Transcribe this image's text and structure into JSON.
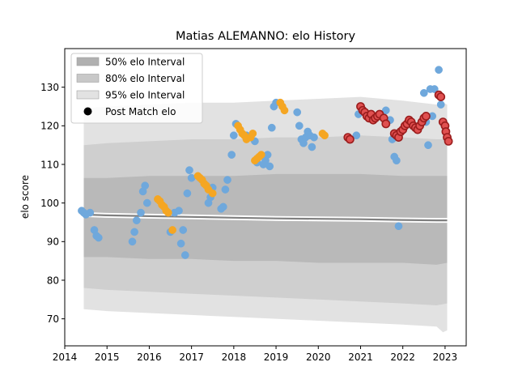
{
  "chart_data": {
    "type": "scatter",
    "title": "Matias ALEMANNO: elo History",
    "xlabel": "",
    "ylabel": "elo score",
    "xlim": [
      2014.0,
      2023.5
    ],
    "ylim": [
      63.0,
      140.0
    ],
    "x_ticks": [
      2014,
      2015,
      2016,
      2017,
      2018,
      2019,
      2020,
      2021,
      2022,
      2023
    ],
    "y_ticks": [
      70,
      80,
      90,
      100,
      110,
      120,
      130
    ],
    "grid": false,
    "legend_position": "upper-left",
    "legend": [
      {
        "label": "50% elo Interval",
        "kind": "patch",
        "color": "#b0b0b0"
      },
      {
        "label": "80% elo Interval",
        "kind": "patch",
        "color": "#c8c8c8"
      },
      {
        "label": "95% elo Interval",
        "kind": "patch",
        "color": "#e2e2e2"
      },
      {
        "label": "Post Match elo",
        "kind": "marker",
        "color": "#000000"
      }
    ],
    "bands": [
      {
        "interval": "95%",
        "color": "#e2e2e2",
        "x": [
          2014.45,
          2015.0,
          2016.0,
          2017.0,
          2018.0,
          2019.0,
          2020.0,
          2021.0,
          2022.0,
          2022.8,
          2022.95,
          2023.05
        ],
        "upper": [
          124.5,
          125.0,
          125.5,
          126.0,
          126.0,
          126.5,
          127.0,
          127.5,
          126.5,
          125.5,
          126.0,
          125.5
        ],
        "lower": [
          72.5,
          72.0,
          71.5,
          71.0,
          70.5,
          70.0,
          69.5,
          69.0,
          68.5,
          68.0,
          66.5,
          67.0
        ]
      },
      {
        "interval": "80%",
        "color": "#cfcfcf",
        "x": [
          2014.45,
          2015.0,
          2016.0,
          2017.0,
          2018.0,
          2019.0,
          2020.0,
          2021.0,
          2022.0,
          2022.8,
          2023.05
        ],
        "upper": [
          115.0,
          115.5,
          116.0,
          116.5,
          116.5,
          117.0,
          117.0,
          117.5,
          117.0,
          116.5,
          116.5
        ],
        "lower": [
          78.0,
          77.5,
          77.0,
          76.5,
          76.0,
          75.5,
          75.0,
          74.5,
          74.0,
          73.5,
          74.0
        ]
      },
      {
        "interval": "50%",
        "color": "#b9b9b9",
        "x": [
          2014.45,
          2015.0,
          2016.0,
          2017.0,
          2018.0,
          2019.0,
          2020.0,
          2021.0,
          2022.0,
          2022.8,
          2023.05
        ],
        "upper": [
          106.5,
          106.5,
          107.0,
          107.0,
          107.0,
          107.5,
          107.5,
          107.5,
          107.0,
          107.0,
          107.0
        ],
        "lower": [
          86.0,
          86.0,
          85.5,
          85.5,
          85.0,
          85.0,
          84.5,
          84.5,
          84.5,
          84.0,
          84.5
        ]
      }
    ],
    "median_line": {
      "color": "#808080",
      "x": [
        2014.45,
        2015.0,
        2016.0,
        2017.0,
        2018.0,
        2019.0,
        2020.0,
        2021.0,
        2022.0,
        2022.8,
        2023.05
      ],
      "y": [
        97.0,
        96.8,
        96.6,
        96.4,
        96.2,
        96.0,
        95.9,
        95.8,
        95.6,
        95.5,
        95.5
      ]
    },
    "series": [
      {
        "color": "#6fa8dc",
        "points": [
          [
            2014.4,
            98.0
          ],
          [
            2014.45,
            97.5
          ],
          [
            2014.5,
            97.0
          ],
          [
            2014.6,
            97.5
          ],
          [
            2014.7,
            93.0
          ],
          [
            2014.75,
            91.5
          ],
          [
            2014.8,
            91.0
          ],
          [
            2015.6,
            90.0
          ],
          [
            2015.65,
            92.5
          ],
          [
            2015.7,
            95.5
          ],
          [
            2015.8,
            97.5
          ],
          [
            2015.85,
            103.0
          ],
          [
            2015.9,
            104.5
          ],
          [
            2015.95,
            100.0
          ],
          [
            2016.5,
            92.5
          ],
          [
            2016.6,
            97.5
          ],
          [
            2016.7,
            98.0
          ],
          [
            2016.75,
            89.5
          ],
          [
            2016.8,
            93.0
          ],
          [
            2016.85,
            86.5
          ],
          [
            2016.9,
            102.5
          ],
          [
            2016.95,
            108.5
          ],
          [
            2017.0,
            106.5
          ],
          [
            2017.4,
            100.0
          ],
          [
            2017.45,
            101.5
          ],
          [
            2017.5,
            104.0
          ],
          [
            2017.7,
            98.5
          ],
          [
            2017.75,
            99.0
          ],
          [
            2017.8,
            103.5
          ],
          [
            2017.85,
            106.0
          ],
          [
            2017.95,
            112.5
          ],
          [
            2018.0,
            117.5
          ],
          [
            2018.05,
            120.5
          ],
          [
            2018.3,
            117.5
          ],
          [
            2018.4,
            117.0
          ],
          [
            2018.5,
            116.0
          ],
          [
            2018.55,
            110.5
          ],
          [
            2018.7,
            110.0
          ],
          [
            2018.75,
            111.0
          ],
          [
            2018.8,
            112.5
          ],
          [
            2018.85,
            109.5
          ],
          [
            2018.9,
            119.5
          ],
          [
            2018.95,
            125.0
          ],
          [
            2019.0,
            126.0
          ],
          [
            2019.5,
            123.5
          ],
          [
            2019.55,
            120.0
          ],
          [
            2019.6,
            116.5
          ],
          [
            2019.65,
            115.5
          ],
          [
            2019.7,
            117.0
          ],
          [
            2019.75,
            118.5
          ],
          [
            2019.8,
            117.5
          ],
          [
            2019.85,
            114.5
          ],
          [
            2019.9,
            117.0
          ],
          [
            2020.9,
            117.5
          ],
          [
            2020.95,
            123.0
          ],
          [
            2021.5,
            123.0
          ],
          [
            2021.6,
            124.0
          ],
          [
            2021.7,
            121.5
          ],
          [
            2021.75,
            116.5
          ],
          [
            2021.8,
            112.0
          ],
          [
            2021.85,
            111.0
          ],
          [
            2021.9,
            94.0
          ],
          [
            2022.5,
            128.5
          ],
          [
            2022.55,
            121.0
          ],
          [
            2022.6,
            115.0
          ],
          [
            2022.65,
            129.5
          ],
          [
            2022.7,
            122.5
          ],
          [
            2022.75,
            129.5
          ],
          [
            2022.85,
            134.5
          ],
          [
            2022.9,
            125.5
          ]
        ]
      },
      {
        "color": "#f5a623",
        "points": [
          [
            2016.2,
            101.0
          ],
          [
            2016.25,
            100.5
          ],
          [
            2016.3,
            99.5
          ],
          [
            2016.35,
            99.0
          ],
          [
            2016.4,
            98.0
          ],
          [
            2016.45,
            97.5
          ],
          [
            2016.55,
            93.0
          ],
          [
            2017.15,
            107.0
          ],
          [
            2017.2,
            106.5
          ],
          [
            2017.25,
            106.0
          ],
          [
            2017.3,
            105.0
          ],
          [
            2017.35,
            104.5
          ],
          [
            2017.4,
            103.5
          ],
          [
            2017.5,
            102.5
          ],
          [
            2018.1,
            120.0
          ],
          [
            2018.15,
            119.0
          ],
          [
            2018.2,
            118.0
          ],
          [
            2018.25,
            117.5
          ],
          [
            2018.3,
            116.5
          ],
          [
            2018.4,
            117.0
          ],
          [
            2018.45,
            118.0
          ],
          [
            2018.5,
            111.0
          ],
          [
            2018.55,
            111.5
          ],
          [
            2018.6,
            112.0
          ],
          [
            2018.65,
            112.5
          ],
          [
            2019.1,
            126.0
          ],
          [
            2019.15,
            125.0
          ],
          [
            2019.2,
            124.0
          ],
          [
            2020.1,
            118.0
          ],
          [
            2020.15,
            117.5
          ]
        ]
      },
      {
        "color": "#e05050",
        "edge": "#9b1d1d",
        "points": [
          [
            2020.7,
            117.0
          ],
          [
            2020.75,
            116.5
          ],
          [
            2021.0,
            125.0
          ],
          [
            2021.05,
            124.0
          ],
          [
            2021.1,
            123.5
          ],
          [
            2021.15,
            122.5
          ],
          [
            2021.2,
            122.0
          ],
          [
            2021.25,
            123.0
          ],
          [
            2021.3,
            121.5
          ],
          [
            2021.35,
            122.0
          ],
          [
            2021.4,
            122.5
          ],
          [
            2021.45,
            123.0
          ],
          [
            2021.55,
            122.0
          ],
          [
            2021.6,
            120.5
          ],
          [
            2021.8,
            118.0
          ],
          [
            2021.85,
            117.5
          ],
          [
            2021.9,
            117.0
          ],
          [
            2021.95,
            118.5
          ],
          [
            2022.0,
            119.0
          ],
          [
            2022.05,
            120.0
          ],
          [
            2022.1,
            120.5
          ],
          [
            2022.15,
            121.5
          ],
          [
            2022.2,
            121.0
          ],
          [
            2022.25,
            120.0
          ],
          [
            2022.3,
            119.5
          ],
          [
            2022.35,
            119.0
          ],
          [
            2022.4,
            120.0
          ],
          [
            2022.45,
            121.0
          ],
          [
            2022.5,
            122.0
          ],
          [
            2022.55,
            122.5
          ],
          [
            2022.85,
            128.0
          ],
          [
            2022.9,
            127.5
          ],
          [
            2022.95,
            121.0
          ],
          [
            2023.0,
            120.0
          ],
          [
            2023.02,
            118.5
          ],
          [
            2023.05,
            117.0
          ],
          [
            2023.08,
            116.0
          ]
        ]
      }
    ]
  }
}
